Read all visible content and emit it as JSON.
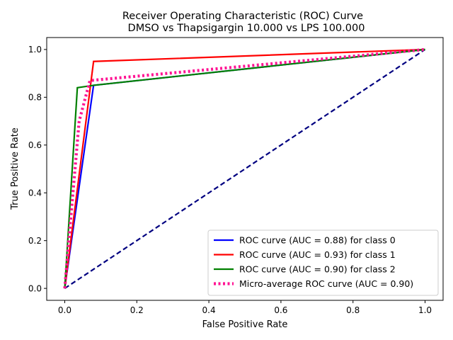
{
  "chart_data": {
    "type": "line",
    "title": "Receiver Operating Characteristic (ROC) Curve",
    "subtitle": "DMSO vs Thapsigargin 10.000 vs LPS 100.000",
    "xlabel": "False Positive Rate",
    "ylabel": "True Positive Rate",
    "xlim": [
      -0.05,
      1.05
    ],
    "ylim": [
      -0.05,
      1.05
    ],
    "xticks": [
      "0.0",
      "0.2",
      "0.4",
      "0.6",
      "0.8",
      "1.0"
    ],
    "yticks": [
      "0.0",
      "0.2",
      "0.4",
      "0.6",
      "0.8",
      "1.0"
    ],
    "grid": false,
    "legend_position": "lower-right",
    "series": [
      {
        "name": "ROC curve (AUC = 0.88) for class 0",
        "color": "#0000ff",
        "style": "solid",
        "x": [
          0.0,
          0.08,
          1.0
        ],
        "y": [
          0.0,
          0.85,
          1.0
        ]
      },
      {
        "name": "ROC curve (AUC = 0.93) for class 1",
        "color": "#ff0000",
        "style": "solid",
        "x": [
          0.0,
          0.08,
          1.0
        ],
        "y": [
          0.0,
          0.95,
          1.0
        ]
      },
      {
        "name": "ROC curve (AUC = 0.90) for class 2",
        "color": "#008000",
        "style": "solid",
        "x": [
          0.0,
          0.035,
          0.08,
          1.0
        ],
        "y": [
          0.0,
          0.84,
          0.85,
          1.0
        ]
      },
      {
        "name": "Micro-average ROC curve (AUC = 0.90)",
        "color": "#ff1493",
        "style": "dotted",
        "x": [
          0.0,
          0.04,
          0.07,
          1.0
        ],
        "y": [
          0.0,
          0.7,
          0.87,
          1.0
        ]
      }
    ],
    "reference_line": {
      "color": "#000080",
      "style": "dashed",
      "x": [
        0.0,
        1.0
      ],
      "y": [
        0.0,
        1.0
      ]
    }
  }
}
